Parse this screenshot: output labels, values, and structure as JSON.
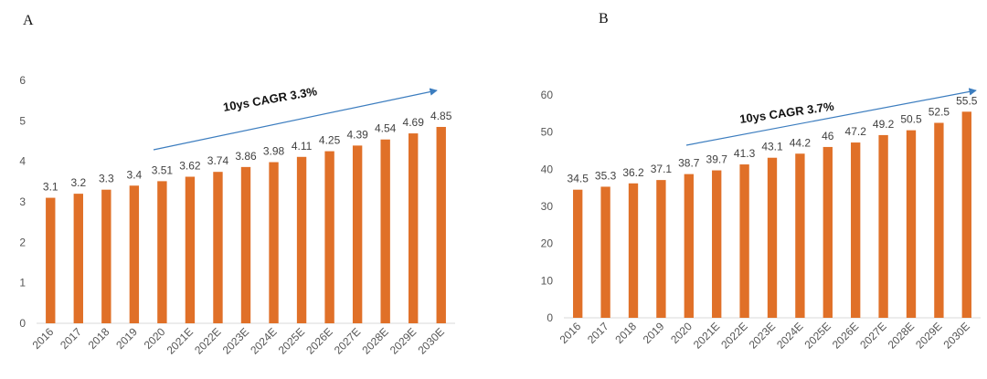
{
  "panels": {
    "a_label": "A",
    "b_label": "B"
  },
  "colors": {
    "bar": "#E07028",
    "arrow": "#3C7DBF",
    "axis": "#D9D9D9"
  },
  "chart_data": [
    {
      "type": "bar",
      "panel": "A",
      "categories": [
        "2016",
        "2017",
        "2018",
        "2019",
        "2020",
        "2021E",
        "2022E",
        "2023E",
        "2024E",
        "2025E",
        "2026E",
        "2027E",
        "2028E",
        "2029E",
        "2030E"
      ],
      "values": [
        3.1,
        3.2,
        3.3,
        3.4,
        3.51,
        3.62,
        3.74,
        3.86,
        3.98,
        4.11,
        4.25,
        4.39,
        4.54,
        4.69,
        4.85
      ],
      "data_labels": [
        "3.1",
        "3.2",
        "3.3",
        "3.4",
        "3.51",
        "3.62",
        "3.74",
        "3.86",
        "3.98",
        "4.11",
        "4.25",
        "4.39",
        "4.54",
        "4.69",
        "4.85"
      ],
      "ylim": [
        0,
        6
      ],
      "yticks": [
        "0",
        "1",
        "2",
        "3",
        "4",
        "5",
        "6"
      ],
      "annotation": "10ys CAGR 3.3%",
      "grid": false
    },
    {
      "type": "bar",
      "panel": "B",
      "categories": [
        "2016",
        "2017",
        "2018",
        "2019",
        "2020",
        "2021E",
        "2022E",
        "2023E",
        "2024E",
        "2025E",
        "2026E",
        "2027E",
        "2028E",
        "2029E",
        "2030E"
      ],
      "values": [
        34.5,
        35.3,
        36.2,
        37.1,
        38.7,
        39.7,
        41.3,
        43.1,
        44.2,
        46,
        47.2,
        49.2,
        50.5,
        52.5,
        55.5
      ],
      "data_labels": [
        "34.5",
        "35.3",
        "36.2",
        "37.1",
        "38.7",
        "39.7",
        "41.3",
        "43.1",
        "44.2",
        "46",
        "47.2",
        "49.2",
        "50.5",
        "52.5",
        "55.5"
      ],
      "ylim": [
        0,
        60
      ],
      "yticks": [
        "0",
        "10",
        "20",
        "30",
        "40",
        "50",
        "60"
      ],
      "annotation": "10ys CAGR 3.7%",
      "grid": false
    }
  ]
}
